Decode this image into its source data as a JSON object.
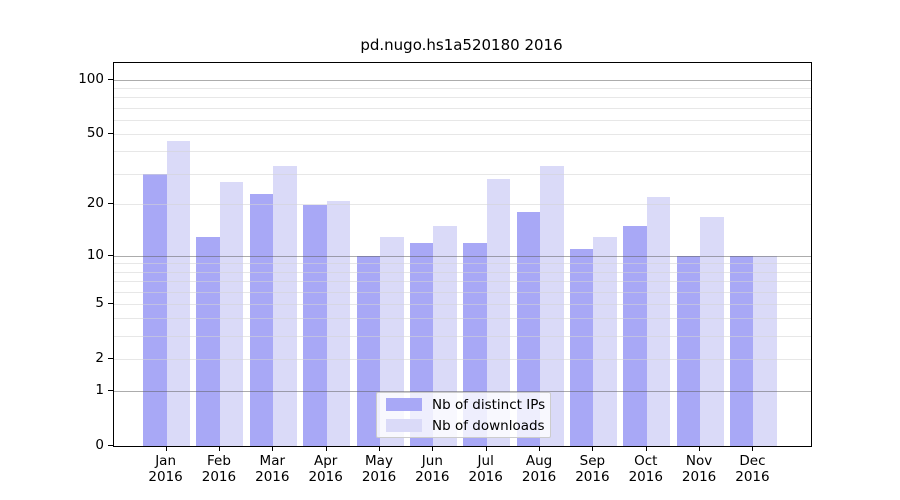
{
  "title": "pd.nugo.hs1a520180 2016",
  "legend": {
    "items": [
      {
        "label": "Nb of distinct IPs",
        "color": "#a8a8f6"
      },
      {
        "label": "Nb of downloads",
        "color": "#dadaf8"
      }
    ]
  },
  "colors": {
    "distinct_ips_bar": "#a8a8f6",
    "downloads_bar": "#dadaf8",
    "axis": "#000000",
    "major_gridline": "#ababab",
    "minor_gridline": "#e9e9e9",
    "background": "#ffffff"
  },
  "chart_data": {
    "type": "bar",
    "title": "pd.nugo.hs1a520180 2016",
    "categories": [
      "Jan",
      "Feb",
      "Mar",
      "Apr",
      "May",
      "Jun",
      "Jul",
      "Aug",
      "Sep",
      "Oct",
      "Nov",
      "Dec"
    ],
    "year": "2016",
    "series": [
      {
        "name": "Nb of distinct IPs",
        "color": "#a8a8f6",
        "values": [
          30,
          13,
          23,
          20,
          10,
          12,
          12,
          18,
          11,
          15,
          10,
          10
        ]
      },
      {
        "name": "Nb of downloads",
        "color": "#dadaf8",
        "values": [
          46,
          27,
          33,
          21,
          13,
          15,
          28,
          33,
          13,
          22,
          17,
          10
        ]
      }
    ],
    "xlabel": "",
    "ylabel": "",
    "y_ticks": [
      0,
      1,
      2,
      5,
      10,
      20,
      50,
      100
    ],
    "major_gridlines": [
      1,
      10,
      100
    ],
    "minor_gridlines": [
      2,
      3,
      4,
      5,
      6,
      7,
      8,
      9,
      20,
      30,
      40,
      50,
      60,
      70,
      80,
      90
    ],
    "scale": "log1p",
    "ylim": [
      0,
      124
    ],
    "grid": true,
    "legend_position": "bottom-center"
  }
}
